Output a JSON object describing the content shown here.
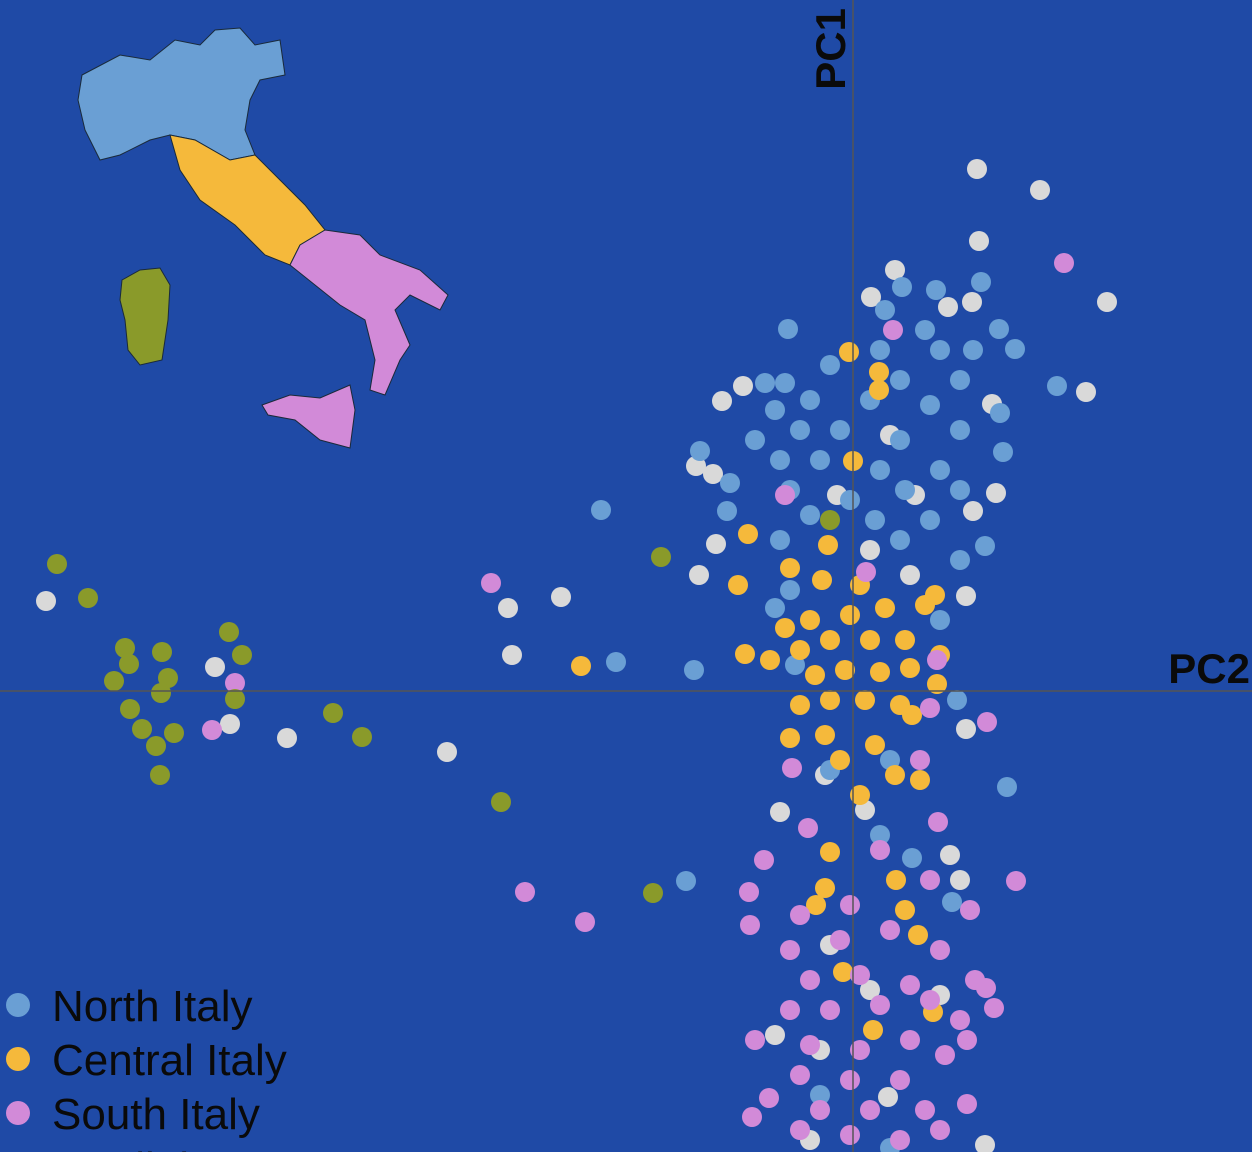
{
  "chart_data": {
    "type": "scatter",
    "x_label": "PC2",
    "y_label": "PC1",
    "xlim": [
      -8.53,
      3.99
    ],
    "ylim": [
      -4.61,
      6.91
    ],
    "series": [
      {
        "name": "North Italy",
        "color": "#6a9fd4",
        "x": [
          -2.52,
          -2.37,
          -1.59,
          -1.67,
          -0.65,
          2.04,
          1.54,
          1.28,
          1.46,
          1.62,
          0.49,
          0.83,
          0.32,
          0.72,
          0.27,
          0.87,
          1.2,
          -0.23,
          0.47,
          1.07,
          -0.88,
          -0.68,
          -0.43,
          0.17,
          0.77,
          1.47,
          -0.78,
          -0.98,
          -0.53,
          -0.13,
          0.47,
          1.07,
          -1.53,
          1.5,
          -0.73,
          -0.33,
          0.27,
          0.87,
          -1.23,
          -0.63,
          -0.03,
          0.52,
          1.07,
          -1.26,
          -0.43,
          0.22,
          0.77,
          -0.73,
          0.47,
          1.32,
          1.07,
          -0.63,
          -0.78,
          0.87,
          -0.58,
          1.04,
          -0.23,
          0.37,
          0.27,
          0.59,
          0.99,
          -0.33,
          0.37
        ],
        "values": [
          1.81,
          0.29,
          0.21,
          -1.9,
          3.62,
          3.05,
          -0.96,
          4.09,
          3.62,
          3.42,
          4.04,
          4.01,
          3.81,
          3.61,
          3.41,
          3.41,
          3.41,
          3.26,
          3.11,
          3.11,
          3.08,
          3.08,
          2.91,
          2.91,
          2.86,
          2.78,
          2.81,
          2.51,
          2.61,
          2.61,
          2.51,
          2.61,
          2.4,
          2.39,
          2.31,
          2.31,
          2.21,
          2.21,
          2.08,
          2.01,
          1.91,
          2.01,
          2.01,
          1.8,
          1.76,
          1.71,
          1.71,
          1.51,
          1.51,
          1.45,
          1.31,
          1.01,
          0.83,
          0.71,
          0.26,
          -0.09,
          -0.79,
          -0.69,
          -1.44,
          -1.67,
          -2.11,
          -4.04,
          -4.57
        ]
      },
      {
        "name": "Central Italy",
        "color": "#f5b93b",
        "x": [
          -2.72,
          -1.15,
          -1.05,
          -1.08,
          -0.83,
          -0.04,
          0.26,
          0.26,
          0,
          -0.25,
          -0.63,
          -0.31,
          0.07,
          0.82,
          -0.68,
          -0.43,
          -0.03,
          0.32,
          0.72,
          -0.53,
          -0.23,
          0.17,
          0.52,
          0.87,
          -0.38,
          -0.08,
          0.27,
          0.57,
          0.84,
          -0.53,
          -0.23,
          0.12,
          0.47,
          -0.63,
          -0.28,
          0.22,
          0.59,
          -0.13,
          0.67,
          0.07,
          0.42,
          -0.23,
          0.43,
          -0.28,
          -0.37,
          0.52,
          0.65,
          -0.1,
          0.2,
          0.8
        ],
        "values": [
          0.25,
          1.06,
          1.57,
          0.37,
          0.31,
          3.39,
          3.19,
          3.01,
          2.3,
          1.46,
          1.23,
          1.11,
          1.06,
          0.96,
          0.63,
          0.71,
          0.76,
          0.83,
          0.86,
          0.41,
          0.51,
          0.51,
          0.51,
          0.36,
          0.16,
          0.21,
          0.19,
          0.23,
          0.07,
          -0.14,
          -0.09,
          -0.09,
          -0.14,
          -0.47,
          -0.44,
          -0.54,
          -0.24,
          -0.69,
          -0.89,
          -1.04,
          -0.84,
          -1.61,
          -1.89,
          -1.97,
          -2.14,
          -2.19,
          -2.44,
          -2.81,
          -3.39,
          -3.21
        ]
      },
      {
        "name": "South Italy",
        "color": "#d28ad8",
        "x": [
          -3.62,
          -6.18,
          -6.41,
          -3.28,
          -2.68,
          -0.89,
          -1.04,
          -1.03,
          -0.61,
          -0.45,
          2.11,
          0.4,
          -0.68,
          0.13,
          0.84,
          1.34,
          0.77,
          0.67,
          0.85,
          1.63,
          1.17,
          -0.53,
          -0.03,
          0.27,
          0.77,
          -0.63,
          -0.13,
          0.37,
          0.87,
          -0.43,
          0.07,
          0.57,
          1.22,
          -0.63,
          -0.23,
          0.27,
          0.77,
          1.33,
          1.41,
          -0.98,
          -0.43,
          0.07,
          0.57,
          1.07,
          1.14,
          -0.53,
          -0.03,
          0.47,
          0.92,
          -0.84,
          -0.33,
          0.17,
          0.72,
          1.14,
          -1.01,
          -0.53,
          -0.03,
          0.47,
          0.87
        ],
        "values": [
          1.08,
          0.08,
          -0.39,
          -2.01,
          -2.31,
          -1.69,
          -2.01,
          -2.34,
          -0.77,
          -1.37,
          4.28,
          3.61,
          1.96,
          1.19,
          0.31,
          -0.31,
          -0.17,
          -0.69,
          -1.31,
          -1.9,
          -2.19,
          -2.24,
          -2.14,
          -1.59,
          -1.89,
          -2.59,
          -2.49,
          -2.39,
          -2.59,
          -2.89,
          -2.84,
          -2.94,
          -2.89,
          -3.19,
          -3.19,
          -3.14,
          -3.09,
          -2.97,
          -3.17,
          -3.49,
          -3.54,
          -3.59,
          -3.49,
          -3.29,
          -3.49,
          -3.84,
          -3.89,
          -3.89,
          -3.64,
          -4.07,
          -4.19,
          -4.19,
          -4.19,
          -4.13,
          -4.26,
          -4.39,
          -4.44,
          -4.49,
          -4.39
        ]
      },
      {
        "name": "Sardinia",
        "color": "#8a9a2a",
        "x": [
          -7.96,
          -7.65,
          -7.28,
          -7.24,
          -7.39,
          -6.91,
          -6.85,
          -6.92,
          -7.23,
          -7.11,
          -6.79,
          -6.97,
          -6.93,
          -6.24,
          -6.11,
          -6.18,
          -5.2,
          -4.91,
          -3.52,
          -2.0,
          -1.92,
          -0.23
        ],
        "values": [
          1.27,
          0.93,
          0.43,
          0.27,
          0.1,
          0.39,
          0.13,
          -0.02,
          -0.18,
          -0.38,
          -0.42,
          -0.55,
          -0.84,
          0.59,
          0.36,
          -0.08,
          -0.22,
          -0.46,
          -1.11,
          -2.02,
          1.34,
          1.71
        ]
      },
      {
        "color": "#d9d9d9",
        "x": [
          -8.07,
          -6.38,
          -6.23,
          -5.66,
          -4.06,
          -3.45,
          -2.92,
          -3.41,
          -1.54,
          -1.37,
          -1.57,
          -1.4,
          -1.31,
          -1.1,
          1.24,
          1.87,
          1.26,
          2.54,
          2.33,
          0.42,
          0.18,
          0.95,
          1.19,
          1.39,
          1.43,
          1.2,
          1.13,
          1.13,
          -0.73,
          0.97,
          1.07,
          -0.16,
          0.37,
          0.62,
          0.17,
          0.57,
          -0.28,
          0.12,
          -0.23,
          0.17,
          0.87,
          -0.78,
          -0.33,
          0.35,
          -0.43,
          1.32
        ],
        "values": [
          0.9,
          0.24,
          -0.33,
          -0.47,
          -0.61,
          0.83,
          0.94,
          0.36,
          1.16,
          1.47,
          2.25,
          2.17,
          2.9,
          3.05,
          5.22,
          5.01,
          4.5,
          3.89,
          2.99,
          4.21,
          3.94,
          3.84,
          3.89,
          2.87,
          1.98,
          1.8,
          0.95,
          -0.38,
          -1.21,
          -1.64,
          -1.89,
          1.96,
          2.56,
          1.96,
          1.41,
          1.16,
          -0.84,
          -1.19,
          -2.54,
          -2.99,
          -3.04,
          -3.44,
          -3.59,
          -4.06,
          -4.49,
          -4.54
        ]
      }
    ]
  }
}
